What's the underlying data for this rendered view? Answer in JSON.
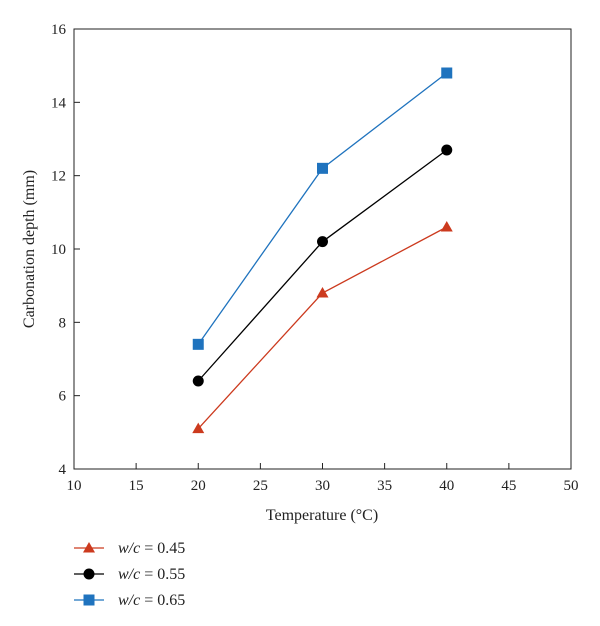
{
  "chart_data": {
    "type": "line",
    "title": "",
    "xlabel": "Temperature (°C)",
    "ylabel": "Carbonation depth (mm)",
    "xlim": [
      10,
      50
    ],
    "ylim": [
      4,
      16
    ],
    "x_ticks": [
      10,
      15,
      20,
      25,
      30,
      35,
      40,
      45,
      50
    ],
    "y_ticks": [
      4,
      6,
      8,
      10,
      12,
      14,
      16
    ],
    "x_tick_labels": [
      "10",
      "15",
      "20",
      "25",
      "30",
      "35",
      "40",
      "45",
      "50"
    ],
    "y_tick_labels": [
      "4",
      "6",
      "8",
      "10",
      "12",
      "14",
      "16"
    ],
    "grid": false,
    "legend_position": "bottom-left, below plot",
    "x": [
      20,
      30,
      40
    ],
    "series": [
      {
        "name": "w/c = 0.45",
        "name_var": "w/c",
        "name_rest": " = 0.45",
        "values": [
          5.1,
          8.8,
          10.6
        ],
        "color": "#cc3a1e",
        "marker": "triangle"
      },
      {
        "name": "w/c = 0.55",
        "name_var": "w/c",
        "name_rest": " = 0.55",
        "values": [
          6.4,
          10.2,
          12.7
        ],
        "color": "#000000",
        "marker": "circle"
      },
      {
        "name": "w/c = 0.65",
        "name_var": "w/c",
        "name_rest": " = 0.65",
        "values": [
          7.4,
          12.2,
          14.8
        ],
        "color": "#1f73be",
        "marker": "square"
      }
    ]
  }
}
